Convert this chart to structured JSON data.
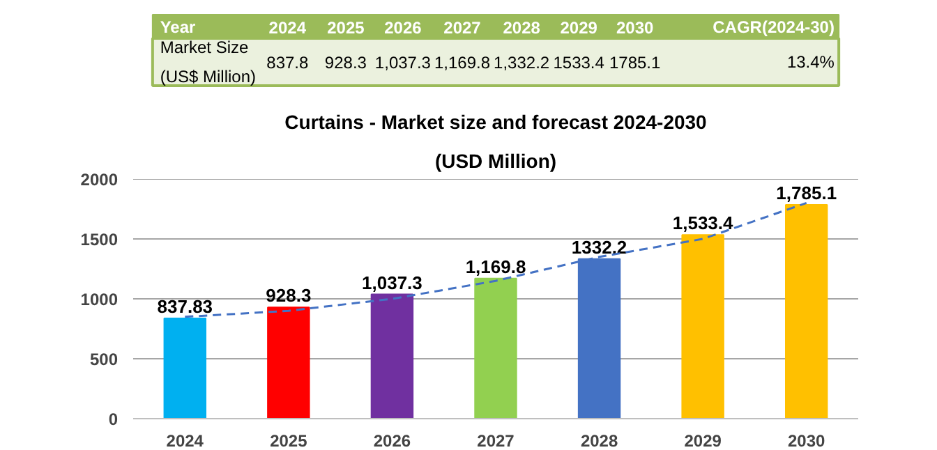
{
  "chart_data": {
    "type": "bar",
    "title": "Curtains - Market size and forecast 2024-2030",
    "subtitle": "(USD Million)",
    "categories": [
      "2024",
      "2025",
      "2026",
      "2027",
      "2028",
      "2029",
      "2030"
    ],
    "series": [
      {
        "colors": [
          "#00b0f0",
          "#ff0000",
          "#7030a0",
          "#92d050",
          "#4472c4",
          "#ffc000",
          "#ffc000"
        ],
        "values": [
          837.83,
          928.3,
          1037.3,
          1169.8,
          1332.2,
          1533.4,
          1785.1
        ],
        "value_labels": [
          "837.83",
          "928.3",
          "1,037.3",
          "1,169.8",
          "1332.2",
          "1,533.4",
          "1,785.1"
        ]
      },
      {
        "type": "line",
        "color": "#4472c4",
        "line_style": "dashed",
        "values": [
          850,
          900,
          1000,
          1150,
          1350,
          1500,
          1800
        ]
      }
    ],
    "ylim": [
      0,
      2000
    ],
    "yticks": [
      0,
      500,
      1000,
      1500,
      2000
    ],
    "grid": "y",
    "annotations": [
      "Year",
      "2024",
      "2025",
      "2026",
      "2027",
      "2028",
      "2029",
      "2030",
      "CAGR(2024-30)",
      "Market Size\n(US$ Million)",
      "837.8",
      "928.3",
      "1,037.3",
      "1,169.8",
      "1,332.2",
      "1533.4",
      "1785.1",
      "13.4%"
    ]
  }
}
